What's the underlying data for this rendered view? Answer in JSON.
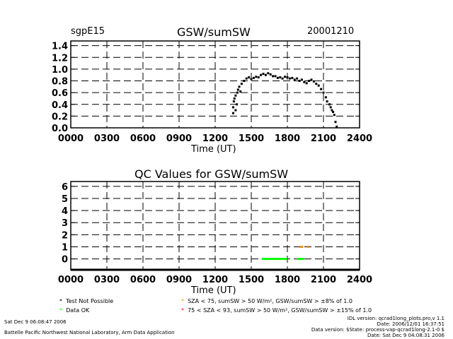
{
  "header": {
    "site": "sgpE15",
    "title": "GSW/sumSW",
    "date": "20001210"
  },
  "legend": {
    "items": [
      {
        "symbol": "*",
        "color": "#000000",
        "label": "Test Not Possible"
      },
      {
        "symbol": "*",
        "color": "#00ff00",
        "label": "Data OK"
      },
      {
        "symbol": "*",
        "color": "#ff8c00",
        "label": "SZA < 75, sumSW > 50 W/m², GSW/sumSW > ±8% of 1.0"
      },
      {
        "symbol": "*",
        "color": "#ff0000",
        "label": "75 < SZA < 93, sumSW > 50 W/m², GSW/sumSW > ±15% of 1.0"
      }
    ]
  },
  "footer": {
    "run_date": "Sat Dec  9 06:08:47 2006",
    "org": "Battelle Pacific Northwest National Laboratory, Arm Data Application",
    "idl_version": "IDL version: qcrad1long_plots.pro,v 1.1",
    "idl_date": "Date: 2006/12/01 16:37:51",
    "data_version": "Data version: $State: process-vap-qcrad1long-2.1-0 $",
    "data_date": "Date: Sat Dec  9 04:08:31 2006"
  },
  "chart_data": [
    {
      "type": "scatter",
      "title": "GSW/sumSW",
      "xlabel": "Time (UT)",
      "ylabel": "",
      "xlim": [
        0,
        24
      ],
      "ylim": [
        0,
        1.48
      ],
      "grid": true,
      "xticks": [
        "0000",
        "0300",
        "0600",
        "0900",
        "1200",
        "1500",
        "1800",
        "2100",
        "2400"
      ],
      "yticks": [
        "0.0",
        "0.2",
        "0.4",
        "0.6",
        "0.8",
        "1.0",
        "1.2",
        "1.4"
      ],
      "points": [
        [
          13.5,
          0.25
        ],
        [
          13.5,
          0.35
        ],
        [
          13.55,
          0.45
        ],
        [
          13.6,
          0.5
        ],
        [
          13.7,
          0.3
        ],
        [
          13.7,
          0.55
        ],
        [
          13.8,
          0.4
        ],
        [
          13.85,
          0.6
        ],
        [
          13.9,
          0.65
        ],
        [
          14.0,
          0.7
        ],
        [
          14.1,
          0.62
        ],
        [
          14.2,
          0.75
        ],
        [
          14.4,
          0.8
        ],
        [
          14.6,
          0.84
        ],
        [
          14.8,
          0.86
        ],
        [
          15.0,
          0.83
        ],
        [
          15.2,
          0.85
        ],
        [
          15.4,
          0.87
        ],
        [
          15.6,
          0.86
        ],
        [
          15.8,
          0.9
        ],
        [
          16.0,
          0.92
        ],
        [
          16.2,
          0.9
        ],
        [
          16.4,
          0.93
        ],
        [
          16.6,
          0.91
        ],
        [
          16.8,
          0.88
        ],
        [
          17.0,
          0.88
        ],
        [
          17.2,
          0.85
        ],
        [
          17.4,
          0.86
        ],
        [
          17.6,
          0.84
        ],
        [
          17.8,
          0.87
        ],
        [
          18.0,
          0.86
        ],
        [
          18.2,
          0.84
        ],
        [
          18.4,
          0.85
        ],
        [
          18.6,
          0.82
        ],
        [
          18.8,
          0.84
        ],
        [
          19.0,
          0.8
        ],
        [
          19.2,
          0.82
        ],
        [
          19.4,
          0.78
        ],
        [
          19.6,
          0.76
        ],
        [
          19.8,
          0.8
        ],
        [
          20.0,
          0.82
        ],
        [
          20.2,
          0.79
        ],
        [
          20.4,
          0.75
        ],
        [
          20.6,
          0.72
        ],
        [
          20.8,
          0.66
        ],
        [
          21.0,
          0.6
        ],
        [
          21.2,
          0.52
        ],
        [
          21.3,
          0.45
        ],
        [
          21.5,
          0.4
        ],
        [
          21.6,
          0.35
        ],
        [
          21.7,
          0.3
        ],
        [
          21.8,
          0.27
        ],
        [
          21.9,
          0.22
        ],
        [
          22.0,
          0.1
        ],
        [
          22.1,
          0.02
        ]
      ]
    },
    {
      "type": "scatter",
      "title": "QC Values for GSW/sumSW",
      "xlabel": "Time (UT)",
      "ylabel": "",
      "xlim": [
        0,
        24
      ],
      "ylim": [
        -0.9,
        6.4
      ],
      "grid": true,
      "xticks": [
        "0000",
        "0300",
        "0600",
        "0900",
        "1200",
        "1500",
        "1800",
        "2100",
        "2400"
      ],
      "yticks": [
        "0",
        "1",
        "2",
        "3",
        "4",
        "5",
        "6"
      ],
      "segments": [
        {
          "qc": 0,
          "color": "#00ff00",
          "from": 15.9,
          "to": 18.0
        },
        {
          "qc": 0,
          "color": "#00ff00",
          "from": 18.8,
          "to": 19.4
        },
        {
          "qc": 1,
          "color": "#ff8c00",
          "from": 19.0,
          "to": 19.3
        },
        {
          "qc": 1,
          "color": "#ff8c00",
          "from": 19.7,
          "to": 19.8
        }
      ]
    }
  ]
}
